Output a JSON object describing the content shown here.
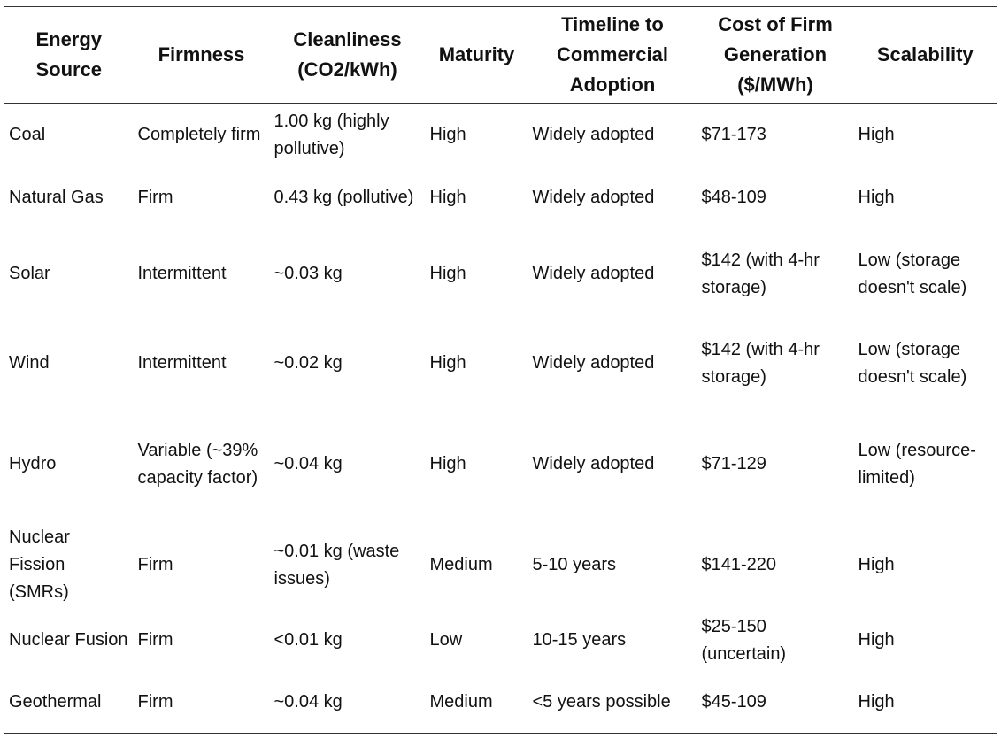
{
  "table": {
    "headers": [
      "Energy Source",
      "Firmness",
      "Cleanliness (CO2/kWh)",
      "Maturity",
      "Timeline to Commercial Adoption",
      "Cost of Firm Generation ($/MWh)",
      "Scalability"
    ],
    "rows": [
      [
        "Coal",
        "Completely firm",
        "1.00 kg (highly pollutive)",
        "High",
        "Widely adopted",
        "$71-173",
        "High"
      ],
      [
        "Natural Gas",
        "Firm",
        "0.43 kg (pollutive)",
        "High",
        "Widely adopted",
        "$48-109",
        "High"
      ],
      [
        "Solar",
        "Intermittent",
        "~0.03 kg",
        "High",
        "Widely adopted",
        "$142 (with 4-hr storage)",
        "Low (storage doesn't scale)"
      ],
      [
        "Wind",
        "Intermittent",
        "~0.02 kg",
        "High",
        "Widely adopted",
        "$142 (with 4-hr storage)",
        "Low (storage doesn't scale)"
      ],
      [
        "Hydro",
        "Variable (~39% capacity factor)",
        "~0.04 kg",
        "High",
        "Widely adopted",
        "$71-129",
        "Low (resource-limited)"
      ],
      [
        "Nuclear Fission (SMRs)",
        "Firm",
        "~0.01 kg (waste issues)",
        "Medium",
        "5-10 years",
        "$141-220",
        "High"
      ],
      [
        "Nuclear Fusion",
        "Firm",
        "<0.01 kg",
        "Low",
        "10-15 years",
        "$25-150 (uncertain)",
        "High"
      ],
      [
        "Geothermal",
        "Firm",
        "~0.04 kg",
        "Medium",
        "<5 years possible",
        "$45-109",
        "High"
      ]
    ]
  }
}
